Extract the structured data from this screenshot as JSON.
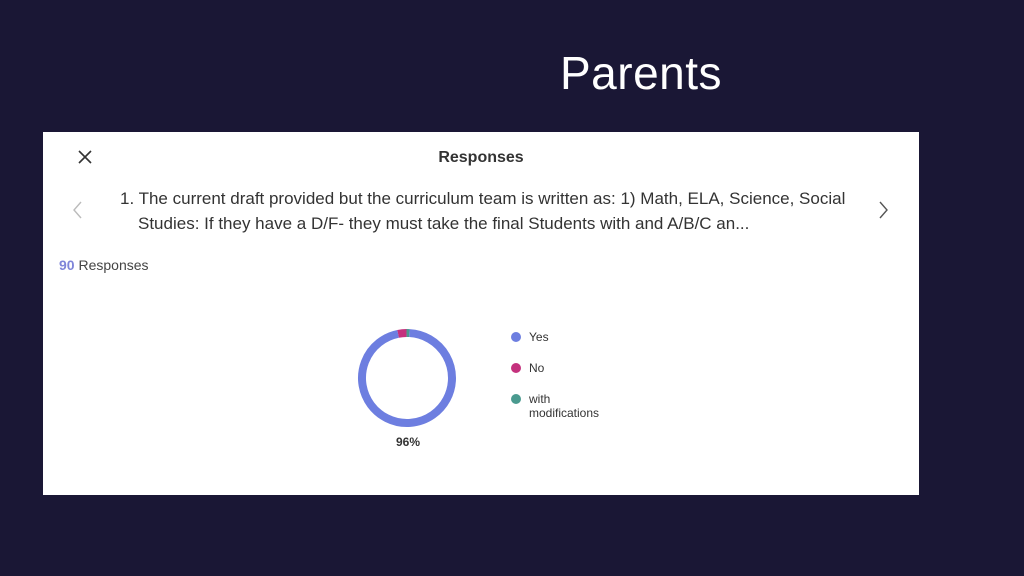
{
  "slide": {
    "title": "Parents"
  },
  "dialog": {
    "title": "Responses",
    "question": "1. The current draft provided but the curriculum team is written as: 1) Math, ELA, Science, Social Studies:   If they have a D/F- they must take the final  Students with and A/B/C an...",
    "response_count": "90",
    "response_label": "Responses"
  },
  "chart_data": {
    "type": "pie",
    "categories": [
      "Yes",
      "No",
      "with modifications"
    ],
    "values": [
      96,
      3,
      1
    ],
    "colors": [
      "#6d7ee0",
      "#c4317d",
      "#4a9a8f"
    ],
    "center_label": "96%",
    "legend_position": "right"
  }
}
